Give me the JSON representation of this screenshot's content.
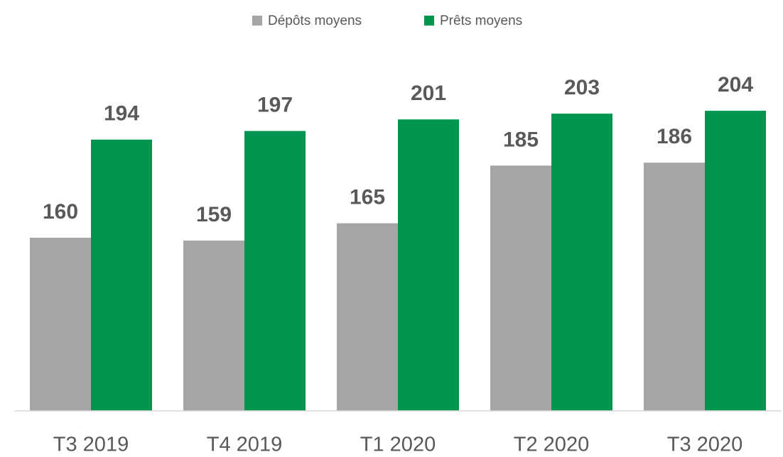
{
  "chart_data": {
    "type": "bar",
    "categories": [
      "T3 2019",
      "T4 2019",
      "T1 2020",
      "T2 2020",
      "T3 2020"
    ],
    "series": [
      {
        "name": "Dépôts moyens",
        "color": "#a5a5a5",
        "values": [
          160,
          159,
          165,
          185,
          186
        ]
      },
      {
        "name": "Prêts moyens",
        "color": "#009650",
        "values": [
          194,
          197,
          201,
          203,
          204
        ]
      }
    ],
    "ylim": [
      100,
      220
    ],
    "legend": "top"
  }
}
